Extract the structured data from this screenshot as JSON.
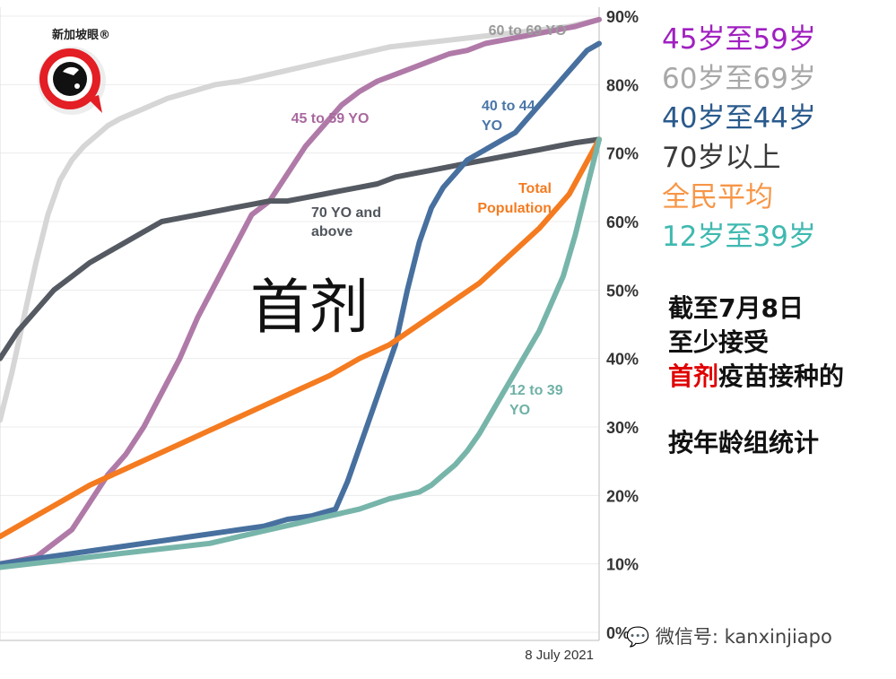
{
  "chart_data": {
    "type": "line",
    "title": "首剂",
    "date_label": "8 July 2021",
    "ylim": [
      0,
      90
    ],
    "y_ticks": [
      "0%",
      "10%",
      "20%",
      "30%",
      "40%",
      "50%",
      "60%",
      "70%",
      "80%",
      "90%"
    ],
    "x_index_range": [
      0,
      100
    ],
    "series": [
      {
        "name": "60 to 69 YO",
        "color": "#d6d6d6",
        "x": [
          0,
          2,
          4,
          6,
          8,
          10,
          12,
          14,
          16,
          18,
          20,
          24,
          28,
          32,
          36,
          40,
          45,
          50,
          55,
          60,
          65,
          70,
          75,
          80,
          85,
          90,
          95,
          100
        ],
        "values": [
          31,
          38,
          46,
          54,
          61,
          66,
          69,
          71,
          72.5,
          74,
          75,
          76.5,
          78,
          79,
          80,
          80.5,
          81.5,
          82.5,
          83.5,
          84.5,
          85.5,
          86,
          86.5,
          87,
          87.5,
          88,
          88.5,
          89.5
        ]
      },
      {
        "name": "45 to 59 YO",
        "color": "#b07aa8",
        "x": [
          0,
          3,
          6,
          9,
          12,
          15,
          18,
          21,
          24,
          27,
          30,
          33,
          36,
          39,
          42,
          45,
          48,
          51,
          54,
          57,
          60,
          63,
          66,
          69,
          72,
          75,
          78,
          81,
          84,
          87,
          90,
          93,
          96,
          100
        ],
        "values": [
          10,
          10.5,
          11,
          13,
          15,
          19,
          23,
          26,
          30,
          35,
          40,
          46,
          51,
          56,
          61,
          63,
          67,
          71,
          74,
          77,
          79,
          80.5,
          81.5,
          82.5,
          83.5,
          84.5,
          85,
          86,
          86.5,
          87,
          87.5,
          88,
          88.5,
          89.5
        ]
      },
      {
        "name": "70 YO and above",
        "color": "#555a62",
        "x": [
          0,
          3,
          6,
          9,
          12,
          15,
          18,
          21,
          24,
          27,
          30,
          33,
          36,
          39,
          42,
          45,
          48,
          51,
          54,
          57,
          60,
          63,
          66,
          69,
          72,
          75,
          78,
          81,
          84,
          87,
          90,
          93,
          96,
          100
        ],
        "values": [
          40,
          44,
          47,
          50,
          52,
          54,
          55.5,
          57,
          58.5,
          60,
          60.5,
          61,
          61.5,
          62,
          62.5,
          63,
          63,
          63.5,
          64,
          64.5,
          65,
          65.5,
          66.5,
          67,
          67.5,
          68,
          68.5,
          69,
          69.5,
          70,
          70.5,
          71,
          71.5,
          72
        ]
      },
      {
        "name": "40 to 44 YO",
        "color": "#47709f",
        "x": [
          0,
          4,
          8,
          12,
          16,
          20,
          24,
          28,
          32,
          36,
          40,
          44,
          48,
          52,
          54,
          56,
          58,
          60,
          62,
          64,
          66,
          68,
          70,
          72,
          74,
          76,
          78,
          80,
          82,
          84,
          86,
          88,
          90,
          92,
          94,
          96,
          98,
          100
        ],
        "values": [
          10,
          10.5,
          11,
          11.5,
          12,
          12.5,
          13,
          13.5,
          14,
          14.5,
          15,
          15.5,
          16.5,
          17,
          17.5,
          18,
          22,
          27,
          32,
          37,
          42,
          50,
          57,
          62,
          65,
          67,
          69,
          70,
          71,
          72,
          73,
          75,
          77,
          79,
          81,
          83,
          85,
          86
        ]
      },
      {
        "name": "Total Population",
        "color": "#f47b20",
        "x": [
          0,
          5,
          10,
          15,
          20,
          25,
          30,
          35,
          40,
          45,
          50,
          55,
          60,
          65,
          70,
          75,
          80,
          85,
          90,
          95,
          100
        ],
        "values": [
          14,
          16.5,
          19,
          21.5,
          23.5,
          25.5,
          27.5,
          29.5,
          31.5,
          33.5,
          35.5,
          37.5,
          40,
          42,
          45,
          48,
          51,
          55,
          59,
          64,
          72
        ]
      },
      {
        "name": "12 to 39 YO",
        "color": "#77b5aa",
        "x": [
          0,
          5,
          10,
          15,
          20,
          25,
          30,
          35,
          40,
          45,
          50,
          55,
          60,
          65,
          70,
          72,
          74,
          76,
          78,
          80,
          82,
          84,
          86,
          88,
          90,
          92,
          94,
          96,
          98,
          100
        ],
        "values": [
          9.5,
          10,
          10.5,
          11,
          11.5,
          12,
          12.5,
          13,
          14,
          15,
          16,
          17,
          18,
          19.5,
          20.5,
          21.5,
          23,
          24.5,
          26.5,
          29,
          32,
          35,
          38,
          41,
          44,
          48,
          52,
          58,
          65,
          72
        ]
      }
    ],
    "annotations": [
      {
        "text": "60 to 69 YO",
        "series": "60 to 69 YO"
      },
      {
        "text": "45 to 59 YO",
        "series": "45 to 59 YO"
      },
      {
        "text": "40 to 44",
        "series": "40 to 44 YO"
      },
      {
        "text": "YO",
        "series": "40 to 44 YO"
      },
      {
        "text": "Total",
        "series": "Total Population"
      },
      {
        "text": "Population",
        "series": "Total Population"
      },
      {
        "text": "70 YO and",
        "series": "70 YO and above"
      },
      {
        "text": "above",
        "series": "70 YO and above"
      },
      {
        "text": "12 to 39",
        "series": "12 to 39 YO"
      },
      {
        "text": "YO",
        "series": "12 to 39 YO"
      }
    ]
  },
  "legend": {
    "items": [
      {
        "label": "45岁至59岁",
        "color": "#a020c0"
      },
      {
        "label": "60岁至69岁",
        "color": "#a8a8a8"
      },
      {
        "label": "40岁至44岁",
        "color": "#2a5a8c"
      },
      {
        "label": "70岁以上",
        "color": "#3a3a3a"
      },
      {
        "label": "全民平均",
        "color": "#f79646"
      },
      {
        "label": "12岁至39岁",
        "color": "#3fb9b0"
      }
    ]
  },
  "notes": {
    "line1": "截至7月8日",
    "line2": "至少接受",
    "line3_highlight": "首剂",
    "line3_rest": "疫苗接种的",
    "line4": "按年龄组统计",
    "highlight_color": "#e00000"
  },
  "logo": {
    "name": "新加坡眼®"
  },
  "watermark": {
    "text": "微信号: kanxinjiapo"
  }
}
